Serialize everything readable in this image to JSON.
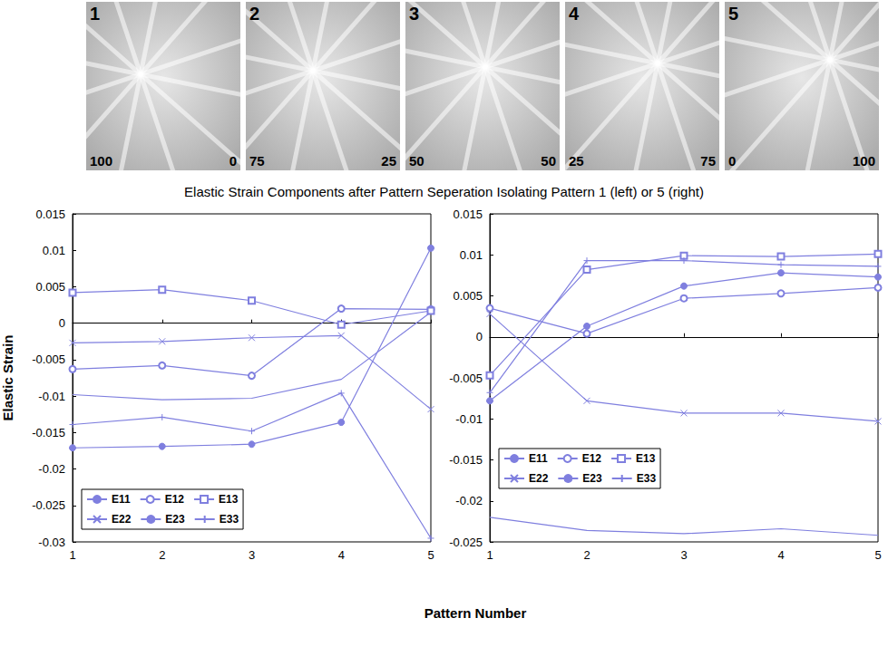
{
  "patterns": [
    {
      "label": "1",
      "left": 100,
      "right": 0
    },
    {
      "label": "2",
      "left": 75,
      "right": 25
    },
    {
      "label": "3",
      "left": 50,
      "right": 50
    },
    {
      "label": "4",
      "left": 25,
      "right": 75
    },
    {
      "label": "5",
      "left": 0,
      "right": 100
    }
  ],
  "title": "Elastic Strain Components after Pattern Seperation Isolating Pattern 1 (left) or 5 (right)",
  "xlabel": "Pattern Number",
  "chart_data": [
    {
      "type": "line",
      "ylabel": "Elastic Strain",
      "x": [
        1,
        2,
        3,
        4,
        5
      ],
      "xlim": [
        1,
        5
      ],
      "xticks": [
        1,
        2,
        3,
        4,
        5
      ],
      "ylim": [
        -0.03,
        0.015
      ],
      "yticks": [
        -0.03,
        -0.025,
        -0.02,
        -0.015,
        -0.01,
        -0.005,
        0,
        0.005,
        0.01,
        0.015
      ],
      "grid": false,
      "legend": "lower left",
      "series": [
        {
          "name": "E11",
          "color": "#7f7fdf",
          "marker": "none",
          "values": [
            -0.0098,
            -0.0105,
            -0.0103,
            -0.0077,
            0.0015
          ]
        },
        {
          "name": "E12",
          "color": "#7f7fdf",
          "marker": "circle",
          "values": [
            -0.0063,
            -0.0058,
            -0.0072,
            0.002,
            0.0019
          ]
        },
        {
          "name": "E13",
          "color": "#7f7fdf",
          "marker": "square",
          "values": [
            0.0042,
            0.0046,
            0.0031,
            -0.0002,
            0.0017
          ]
        },
        {
          "name": "E22",
          "color": "#7f7fdf",
          "marker": "x",
          "values": [
            -0.0027,
            -0.0025,
            -0.002,
            -0.0017,
            -0.0118
          ]
        },
        {
          "name": "E23",
          "color": "#7f7fdf",
          "marker": "dot",
          "values": [
            -0.0171,
            -0.0169,
            -0.0166,
            -0.0136,
            0.0103
          ]
        },
        {
          "name": "E33",
          "color": "#7f7fdf",
          "marker": "plus",
          "values": [
            -0.0139,
            -0.0129,
            -0.0148,
            -0.0096,
            -0.0295
          ]
        }
      ]
    },
    {
      "type": "line",
      "x": [
        1,
        2,
        3,
        4,
        5
      ],
      "xlim": [
        1,
        5
      ],
      "xticks": [
        1,
        2,
        3,
        4,
        5
      ],
      "ylim": [
        -0.025,
        0.015
      ],
      "yticks": [
        -0.025,
        -0.02,
        -0.015,
        -0.01,
        -0.005,
        0,
        0.005,
        0.01,
        0.015
      ],
      "grid": false,
      "legend": "left",
      "series": [
        {
          "name": "E11",
          "color": "#7f7fdf",
          "marker": "none",
          "values": [
            -0.022,
            -0.0236,
            -0.024,
            -0.0234,
            -0.0242
          ]
        },
        {
          "name": "E12",
          "color": "#7f7fdf",
          "marker": "circle",
          "values": [
            0.0035,
            0.0004,
            0.0047,
            0.0053,
            0.006
          ]
        },
        {
          "name": "E13",
          "color": "#7f7fdf",
          "marker": "square",
          "values": [
            -0.0047,
            0.0082,
            0.0099,
            0.0098,
            0.0101
          ]
        },
        {
          "name": "E22",
          "color": "#7f7fdf",
          "marker": "x",
          "values": [
            0.0028,
            -0.0078,
            -0.0093,
            -0.0093,
            -0.0103
          ]
        },
        {
          "name": "E23",
          "color": "#7f7fdf",
          "marker": "dot",
          "values": [
            -0.0078,
            0.0013,
            0.0062,
            0.0078,
            0.0073
          ]
        },
        {
          "name": "E33",
          "color": "#7f7fdf",
          "marker": "plus",
          "values": [
            -0.0068,
            0.0093,
            0.0093,
            0.0088,
            0.0086
          ]
        }
      ]
    }
  ]
}
